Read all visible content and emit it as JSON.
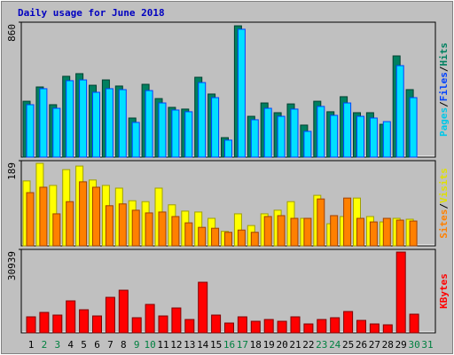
{
  "title": "Daily usage for June 2018",
  "legend_separator": "/",
  "chart_data": [
    {
      "type": "bar",
      "ylim": [
        0,
        860
      ],
      "yticks": [
        860
      ],
      "legend": [
        {
          "text": "Pages",
          "color": "#00c8e8"
        },
        {
          "text": "Files",
          "color": "#0040ff"
        },
        {
          "text": "Hits",
          "color": "#008060"
        }
      ],
      "series": [
        {
          "color": "#008060",
          "stroke": "#004030",
          "values": [
            356,
            447,
            334,
            515,
            532,
            458,
            492,
            453,
            249,
            464,
            373,
            317,
            306,
            509,
            402,
            124,
            837,
            260,
            345,
            283,
            339,
            204,
            356,
            289,
            385,
            283,
            283,
            209,
            645,
            430,
            null
          ]
        },
        {
          "color": "#00e0ff",
          "stroke": "#0040ff",
          "values": [
            334,
            436,
            311,
            487,
            492,
            413,
            436,
            430,
            221,
            424,
            345,
            300,
            289,
            475,
            379,
            108,
            815,
            238,
            311,
            260,
            306,
            164,
            323,
            266,
            345,
            260,
            249,
            226,
            583,
            379,
            null
          ]
        }
      ]
    },
    {
      "type": "bar",
      "ylim": [
        0,
        189
      ],
      "yticks": [
        189
      ],
      "legend": [
        {
          "text": "Sites",
          "color": "#ff8000"
        },
        {
          "text": "Visits",
          "color": "#e0e000"
        }
      ],
      "series": [
        {
          "color": "#ffff00",
          "stroke": "#a0a000",
          "values": [
            144,
            183,
            134,
            169,
            177,
            146,
            134,
            128,
            100,
            98,
            128,
            91,
            77,
            75,
            61,
            32,
            71,
            45,
            71,
            79,
            98,
            61,
            112,
            49,
            65,
            106,
            65,
            53,
            61,
            59,
            null
          ]
        },
        {
          "color": "#ff8000",
          "stroke": "#a04000",
          "values": [
            118,
            130,
            71,
            98,
            142,
            130,
            89,
            93,
            79,
            73,
            75,
            65,
            51,
            41,
            39,
            30,
            35,
            30,
            65,
            67,
            61,
            61,
            104,
            67,
            106,
            61,
            53,
            61,
            57,
            55,
            null
          ]
        }
      ]
    },
    {
      "type": "bar",
      "ylim": [
        0,
        30939
      ],
      "yticks": [
        30939
      ],
      "legend": [
        {
          "text": "KBytes",
          "color": "#ff0000"
        }
      ],
      "series": [
        {
          "color": "#ff0000",
          "stroke": "#800000",
          "values": [
            5922,
            7567,
            6580,
            11844,
            8554,
            6251,
            13160,
            15792,
            5593,
            10528,
            6251,
            9212,
            4935,
            18753,
            6580,
            3619,
            5922,
            4277,
            4935,
            4277,
            5922,
            3290,
            4935,
            5593,
            7896,
            4606,
            3290,
            2961,
            29939,
            6909,
            null
          ]
        }
      ],
      "categories": [
        "1",
        "2",
        "3",
        "4",
        "5",
        "6",
        "7",
        "8",
        "9",
        "10",
        "11",
        "12",
        "13",
        "14",
        "15",
        "16",
        "17",
        "18",
        "19",
        "20",
        "21",
        "22",
        "23",
        "24",
        "25",
        "26",
        "27",
        "28",
        "29",
        "30",
        "31"
      ],
      "category_colors": [
        "#000000",
        "#008040",
        "#008040",
        "#000000",
        "#000000",
        "#000000",
        "#000000",
        "#000000",
        "#008040",
        "#008040",
        "#000000",
        "#000000",
        "#000000",
        "#000000",
        "#000000",
        "#008040",
        "#008040",
        "#000000",
        "#000000",
        "#000000",
        "#000000",
        "#000000",
        "#008040",
        "#008040",
        "#000000",
        "#000000",
        "#000000",
        "#000000",
        "#000000",
        "#008040",
        "#008040"
      ]
    }
  ]
}
